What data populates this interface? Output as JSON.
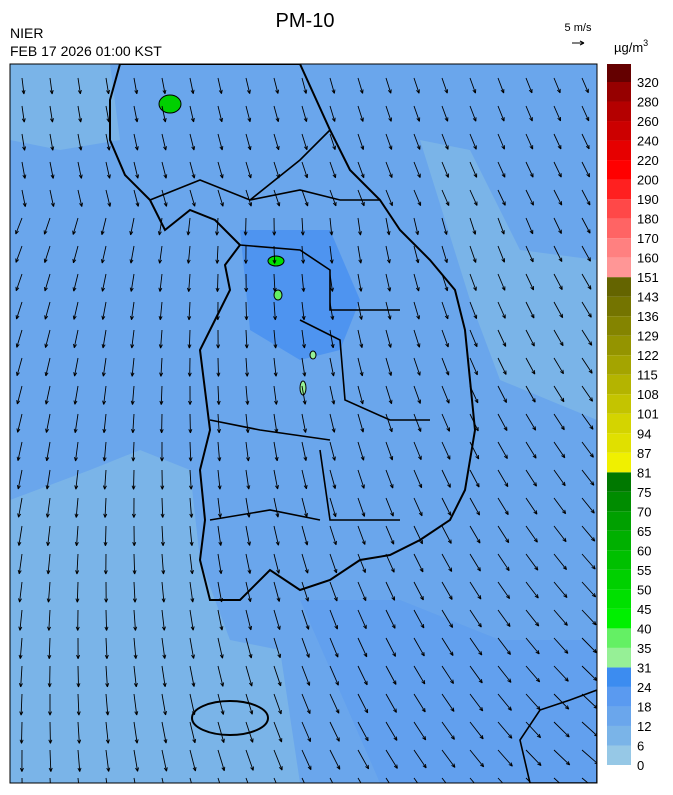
{
  "header": {
    "title": "PM-10",
    "source": "NIER",
    "time": "FEB 17 2026 01:00 KST"
  },
  "wind_scale": "5 m/s",
  "colorbar": {
    "unit": "µg/m",
    "unit_sup": "3",
    "bounds": [
      0,
      6,
      12,
      18,
      24,
      31,
      35,
      40,
      45,
      50,
      55,
      60,
      65,
      70,
      75,
      81,
      87,
      94,
      101,
      108,
      115,
      122,
      129,
      136,
      143,
      151,
      160,
      170,
      180,
      190,
      200,
      220,
      240,
      260,
      280,
      320
    ],
    "colors": [
      "#96c8e6",
      "#7ab4e8",
      "#6aa6ec",
      "#5a9af0",
      "#3c8cf0",
      "#96f096",
      "#64f064",
      "#00f000",
      "#00e000",
      "#00d000",
      "#00c000",
      "#00b000",
      "#00a000",
      "#008c00",
      "#007800",
      "#f0f000",
      "#e0e000",
      "#d4d400",
      "#c4c400",
      "#b4b400",
      "#a4a400",
      "#949400",
      "#848400",
      "#747400",
      "#646400",
      "#ff9696",
      "#ff8080",
      "#ff6464",
      "#ff4848",
      "#ff2020",
      "#ff0000",
      "#e60000",
      "#cc0000",
      "#b40000",
      "#960000",
      "#640000"
    ]
  }
}
